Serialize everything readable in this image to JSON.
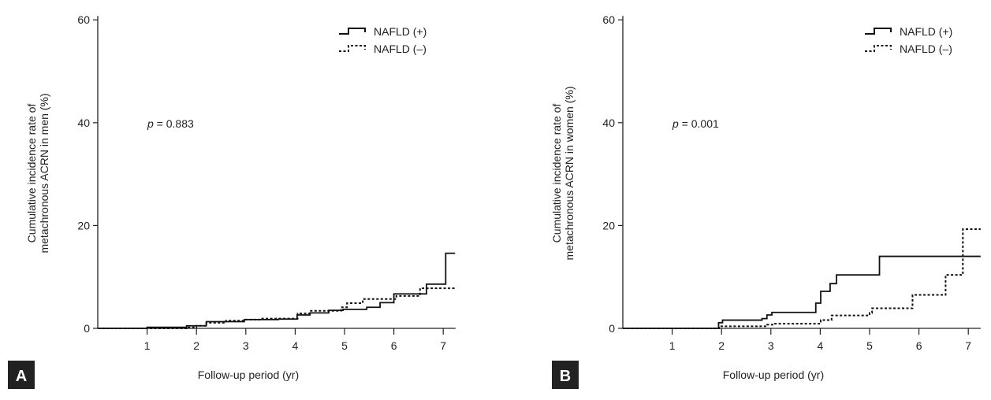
{
  "chart_data": [
    {
      "type": "line",
      "panel_label": "A",
      "xlabel": "Follow-up period (yr)",
      "ylabel": [
        "Cumulative incidence rate of",
        "metachronous ACRN in men (%)"
      ],
      "xlim": [
        0,
        7.25
      ],
      "ylim": [
        0,
        60
      ],
      "xticks": [
        1,
        2,
        3,
        4,
        5,
        6,
        7
      ],
      "yticks": [
        0,
        20,
        40,
        60
      ],
      "annotation": {
        "prefix": "p",
        "text": " = 0.883"
      },
      "legend_position": "top-right",
      "grid": false,
      "series": [
        {
          "name": "NAFLD (+)",
          "style": "solid",
          "steps": [
            [
              0,
              0
            ],
            [
              1.0,
              0.2
            ],
            [
              1.8,
              0.5
            ],
            [
              2.2,
              1.3
            ],
            [
              2.97,
              1.7
            ],
            [
              3.66,
              1.8
            ],
            [
              4.04,
              2.6
            ],
            [
              4.3,
              3.0
            ],
            [
              4.68,
              3.5
            ],
            [
              4.97,
              3.7
            ],
            [
              5.45,
              4.1
            ],
            [
              5.72,
              5.0
            ],
            [
              6.0,
              6.7
            ],
            [
              6.66,
              8.6
            ],
            [
              7.05,
              14.6
            ],
            [
              7.24,
              14.6
            ]
          ]
        },
        {
          "name": "NAFLD (–)",
          "style": "dashed",
          "steps": [
            [
              0,
              0
            ],
            [
              1.8,
              0.2
            ],
            [
              2.0,
              0.5
            ],
            [
              2.2,
              1.1
            ],
            [
              2.6,
              1.5
            ],
            [
              3.0,
              1.7
            ],
            [
              3.3,
              1.9
            ],
            [
              4.05,
              2.9
            ],
            [
              4.3,
              3.4
            ],
            [
              4.93,
              4.1
            ],
            [
              5.05,
              4.9
            ],
            [
              5.37,
              5.7
            ],
            [
              6.05,
              6.3
            ],
            [
              6.53,
              7.8
            ],
            [
              7.25,
              7.8
            ]
          ]
        }
      ]
    },
    {
      "type": "line",
      "panel_label": "B",
      "xlabel": "Follow-up period (yr)",
      "ylabel": [
        "Cumulative incidence rate of",
        "metachronous ACRN in women (%)"
      ],
      "xlim": [
        0,
        7.25
      ],
      "ylim": [
        0,
        60
      ],
      "xticks": [
        1,
        2,
        3,
        4,
        5,
        6,
        7
      ],
      "yticks": [
        0,
        20,
        40,
        60
      ],
      "annotation": {
        "prefix": "p",
        "text": " = 0.001"
      },
      "legend_position": "top-right",
      "grid": false,
      "series": [
        {
          "name": "NAFLD (+)",
          "style": "solid",
          "steps": [
            [
              0,
              0
            ],
            [
              1.94,
              1.1
            ],
            [
              2.02,
              1.6
            ],
            [
              2.82,
              1.9
            ],
            [
              2.92,
              2.6
            ],
            [
              3.02,
              3.1
            ],
            [
              3.91,
              4.9
            ],
            [
              4.01,
              7.2
            ],
            [
              4.2,
              8.7
            ],
            [
              4.33,
              10.4
            ],
            [
              5.2,
              14.0
            ],
            [
              7.25,
              14.0
            ]
          ]
        },
        {
          "name": "NAFLD (–)",
          "style": "dashed",
          "steps": [
            [
              0,
              0
            ],
            [
              1.95,
              0.4
            ],
            [
              2.92,
              0.7
            ],
            [
              3.06,
              0.9
            ],
            [
              4.01,
              1.6
            ],
            [
              4.23,
              2.5
            ],
            [
              5.0,
              3.0
            ],
            [
              5.05,
              3.9
            ],
            [
              5.87,
              6.5
            ],
            [
              6.54,
              10.4
            ],
            [
              6.89,
              19.3
            ],
            [
              7.25,
              19.3
            ]
          ]
        }
      ]
    }
  ]
}
